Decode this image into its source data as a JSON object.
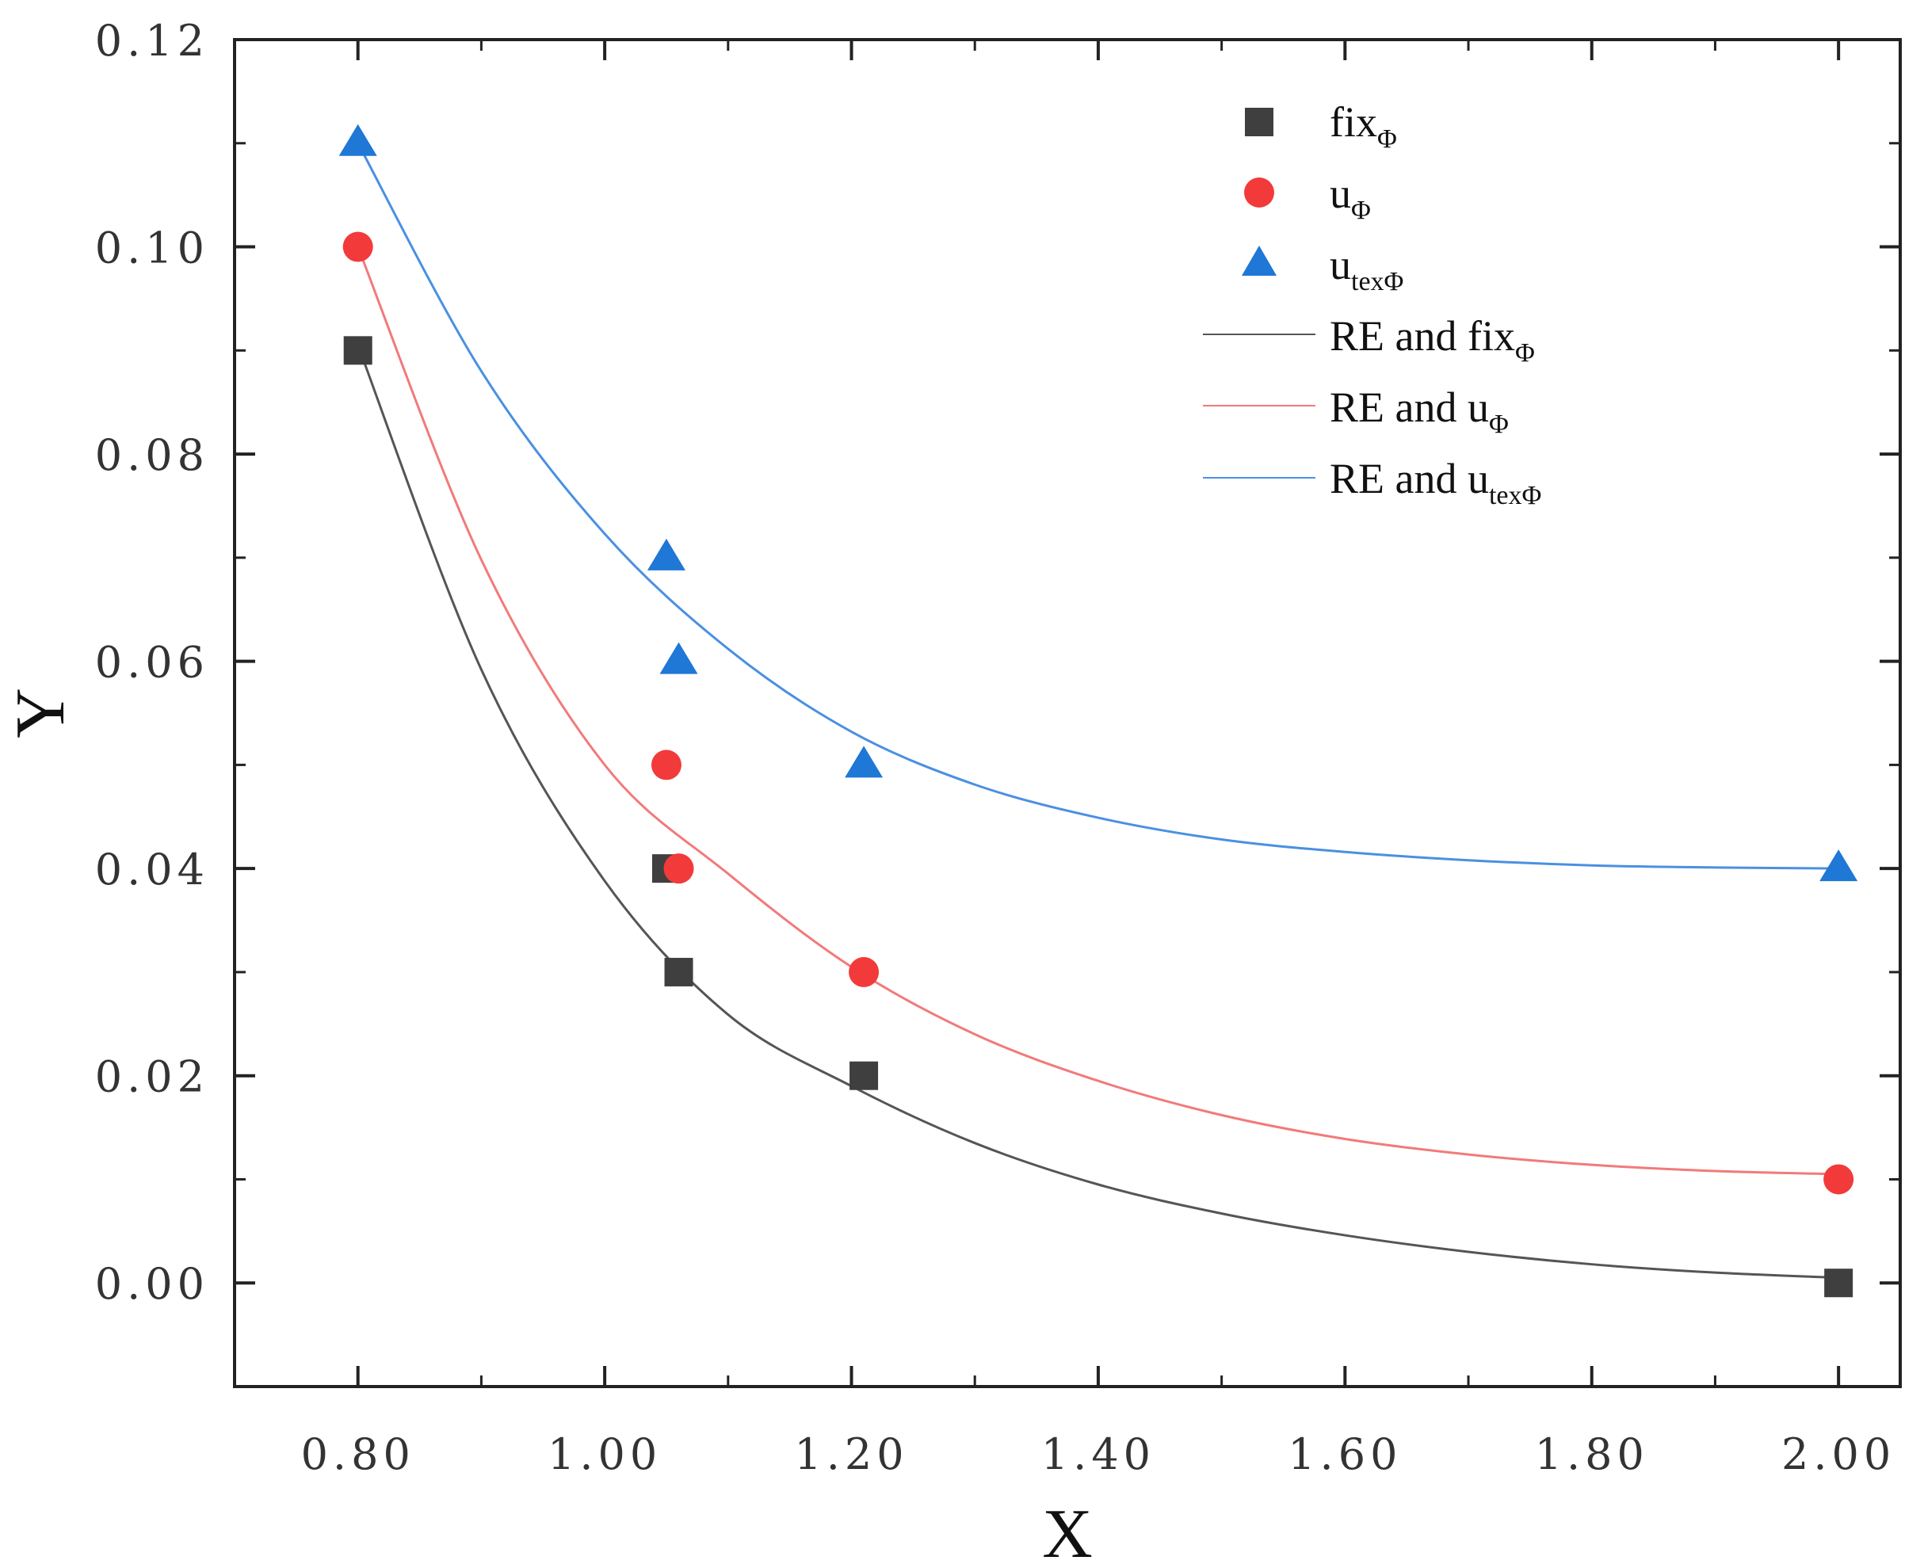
{
  "chart_data": {
    "type": "scatter",
    "title": "",
    "xlabel": "X",
    "ylabel": "Y",
    "xlim": [
      0.7,
      2.05
    ],
    "ylim": [
      -0.01,
      0.12
    ],
    "x_ticks": [
      0.8,
      1.0,
      1.2,
      1.4,
      1.6,
      1.8,
      2.0
    ],
    "x_tick_labels": [
      "0.80",
      "1.00",
      "1.20",
      "1.40",
      "1.60",
      "1.80",
      "2.00"
    ],
    "y_ticks": [
      0.0,
      0.02,
      0.04,
      0.06,
      0.08,
      0.1,
      0.12
    ],
    "y_tick_labels": [
      "0.00",
      "0.02",
      "0.04",
      "0.06",
      "0.08",
      "0.10",
      "0.12"
    ],
    "grid": false,
    "legend_position": "top-right",
    "series": [
      {
        "name": "fix",
        "subscript": "Φ",
        "marker": "square",
        "color": "#3f3f3f",
        "x": [
          0.8,
          1.05,
          1.06,
          1.21,
          2.0
        ],
        "y": [
          0.09,
          0.04,
          0.03,
          0.02,
          0.0
        ]
      },
      {
        "name": "u",
        "subscript": "Φ",
        "marker": "circle",
        "color": "#f23a3a",
        "x": [
          0.8,
          1.05,
          1.06,
          1.21,
          2.0
        ],
        "y": [
          0.1,
          0.05,
          0.04,
          0.03,
          0.01
        ]
      },
      {
        "name": "u",
        "subscript": "texΦ",
        "marker": "triangle",
        "color": "#1f77d6",
        "x": [
          0.8,
          1.05,
          1.06,
          1.21,
          2.0
        ],
        "y": [
          0.11,
          0.07,
          0.06,
          0.05,
          0.04
        ]
      }
    ],
    "fits": [
      {
        "name": "RE and fix",
        "subscript": "Φ",
        "color": "#555555",
        "x": [
          0.8,
          0.9,
          1.0,
          1.1,
          1.2,
          1.3,
          1.4,
          1.5,
          1.6,
          1.7,
          1.8,
          1.9,
          2.0
        ],
        "y": [
          0.0905,
          0.0592,
          0.0388,
          0.0259,
          0.019,
          0.0135,
          0.0095,
          0.0067,
          0.0046,
          0.003,
          0.0018,
          0.001,
          0.0005
        ]
      },
      {
        "name": "RE and u",
        "subscript": "Φ",
        "color": "#f27a7a",
        "x": [
          0.8,
          0.9,
          1.0,
          1.1,
          1.2,
          1.3,
          1.4,
          1.5,
          1.6,
          1.7,
          1.8,
          1.9,
          2.0
        ],
        "y": [
          0.1,
          0.0698,
          0.05,
          0.0395,
          0.0305,
          0.024,
          0.0195,
          0.0162,
          0.0139,
          0.0124,
          0.0114,
          0.0108,
          0.0105
        ]
      },
      {
        "name": "RE and u",
        "subscript": "texΦ",
        "color": "#4a90e2",
        "x": [
          0.8,
          0.9,
          1.0,
          1.1,
          1.2,
          1.3,
          1.4,
          1.5,
          1.6,
          1.7,
          1.8,
          1.9,
          2.0
        ],
        "y": [
          0.11,
          0.088,
          0.0723,
          0.0612,
          0.0532,
          0.0481,
          0.0449,
          0.0428,
          0.0416,
          0.0408,
          0.0403,
          0.0401,
          0.04
        ]
      }
    ]
  }
}
